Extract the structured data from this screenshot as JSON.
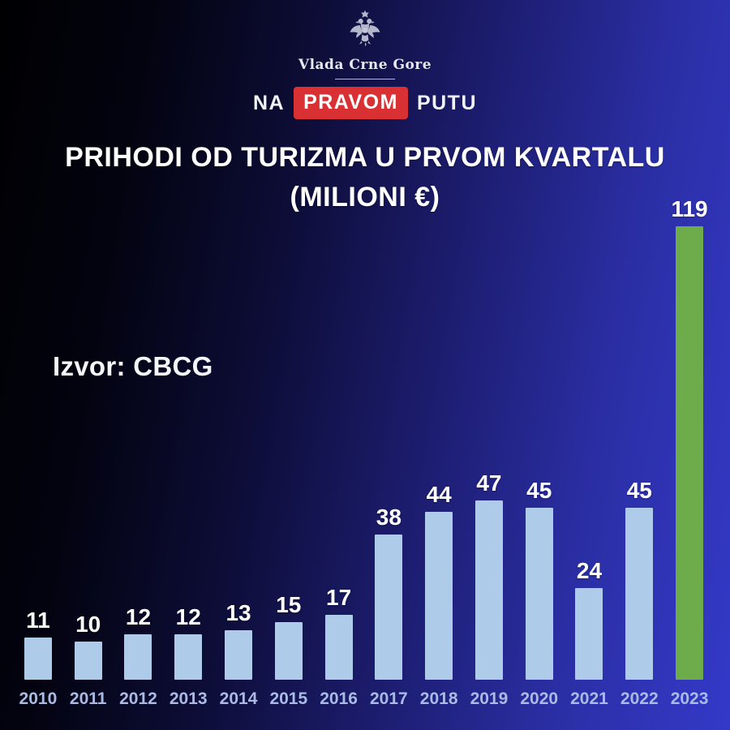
{
  "header": {
    "org_name": "Vlada Crne Gore",
    "emblem_icon": "montenegro-coat-of-arms",
    "slogan": {
      "prefix": "NA",
      "highlight": "PRAVOM",
      "suffix": "PUTU"
    },
    "slogan_highlight_color": "#d93034"
  },
  "title": {
    "line1": "PRIHODI OD TURIZMA U PRVOM KVARTALU",
    "line2": "(MILIONI €)"
  },
  "source": "Izvor: CBCG",
  "chart_data": {
    "type": "bar",
    "categories": [
      "2010",
      "2011",
      "2012",
      "2013",
      "2014",
      "2015",
      "2016",
      "2017",
      "2018",
      "2019",
      "2020",
      "2021",
      "2022",
      "2023"
    ],
    "values": [
      11,
      10,
      12,
      12,
      13,
      15,
      17,
      38,
      44,
      47,
      45,
      24,
      45,
      119
    ],
    "title": "PRIHODI OD TURIZMA U PRVOM KVARTALU (MILIONI €)",
    "xlabel": "",
    "ylabel": "",
    "ylim": [
      0,
      125
    ],
    "grid": false,
    "legend": "none",
    "value_labels": true,
    "bar_color": "#aecbe9",
    "highlight_color": "#6dab4b",
    "highlight_index": 13,
    "tick_label_color": "#a9bbe4",
    "value_label_color": "#ffffff",
    "source": "Izvor: CBCG"
  },
  "colors": {
    "background_left": "#000002",
    "background_right": "#3439c8",
    "title_text": "#ffffff",
    "slogan_box": "#d93034"
  }
}
